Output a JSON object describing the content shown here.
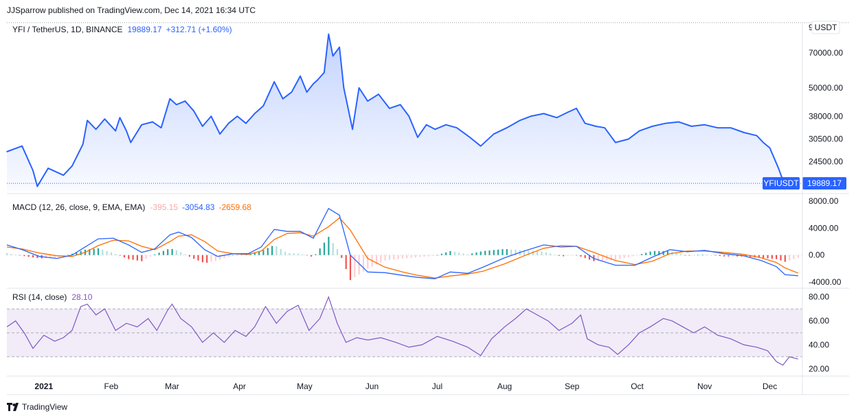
{
  "header": {
    "publish_line": "JJSparrow published on TradingView.com, Dec 14, 2021 16:34 UTC"
  },
  "footer": {
    "brand": "TradingView"
  },
  "colors": {
    "price_line": "#2962ff",
    "macd_line": "#2962ff",
    "signal_line": "#ff6d00",
    "hist_pos_strong": "#26a69a",
    "hist_pos_weak": "#b2dfdb",
    "hist_neg_strong": "#ef5350",
    "hist_neg_weak": "#ffcdd2",
    "rsi_line": "#7e57c2",
    "rsi_band": "#ede7f6",
    "price_tag_bg": "#2962ff"
  },
  "chart_data": [
    {
      "type": "area",
      "legend": {
        "symbol": "YFI / TetherUS, 1D, BINANCE",
        "last": "19889.17",
        "change": "+312.71 (+1.60%)"
      },
      "currency": "USDT",
      "scale": "log",
      "ylim": [
        18500,
        92000
      ],
      "y_ticks": [
        "24500.00",
        "30500.00",
        "38000.00",
        "50000.00",
        "70000.00",
        "9"
      ],
      "price_tag": {
        "symbol": "YFIUSDT",
        "value": "19889.17"
      },
      "x_ticks": [
        "2021",
        "Feb",
        "Mar",
        "Apr",
        "May",
        "Jun",
        "Jul",
        "Aug",
        "Sep",
        "Oct",
        "Nov",
        "Dec"
      ],
      "points": [
        [
          "2020-12-15",
          27000
        ],
        [
          "2020-12-22",
          28500
        ],
        [
          "2020-12-27",
          22500
        ],
        [
          "2020-12-29",
          19300
        ],
        [
          "2021-01-03",
          23000
        ],
        [
          "2021-01-10",
          21500
        ],
        [
          "2021-01-14",
          23500
        ],
        [
          "2021-01-19",
          29000
        ],
        [
          "2021-01-21",
          36500
        ],
        [
          "2021-01-25",
          33500
        ],
        [
          "2021-01-29",
          37000
        ],
        [
          "2021-02-03",
          33000
        ],
        [
          "2021-02-05",
          37500
        ],
        [
          "2021-02-08",
          33000
        ],
        [
          "2021-02-10",
          29500
        ],
        [
          "2021-02-15",
          35000
        ],
        [
          "2021-02-20",
          36000
        ],
        [
          "2021-02-24",
          34000
        ],
        [
          "2021-02-28",
          45000
        ],
        [
          "2021-03-03",
          42500
        ],
        [
          "2021-03-07",
          44000
        ],
        [
          "2021-03-11",
          40000
        ],
        [
          "2021-03-15",
          34500
        ],
        [
          "2021-03-19",
          38000
        ],
        [
          "2021-03-23",
          32000
        ],
        [
          "2021-03-27",
          35500
        ],
        [
          "2021-03-31",
          38000
        ],
        [
          "2021-04-04",
          35500
        ],
        [
          "2021-04-08",
          39000
        ],
        [
          "2021-04-12",
          42000
        ],
        [
          "2021-04-17",
          53000
        ],
        [
          "2021-04-21",
          45000
        ],
        [
          "2021-04-25",
          48000
        ],
        [
          "2021-04-29",
          56000
        ],
        [
          "2021-05-02",
          48000
        ],
        [
          "2021-05-05",
          52000
        ],
        [
          "2021-05-07",
          54000
        ],
        [
          "2021-05-10",
          58000
        ],
        [
          "2021-05-12",
          84000
        ],
        [
          "2021-05-14",
          68000
        ],
        [
          "2021-05-17",
          74000
        ],
        [
          "2021-05-19",
          50000
        ],
        [
          "2021-05-23",
          33500
        ],
        [
          "2021-05-26",
          50000
        ],
        [
          "2021-05-30",
          44000
        ],
        [
          "2021-06-04",
          47000
        ],
        [
          "2021-06-09",
          41000
        ],
        [
          "2021-06-14",
          42500
        ],
        [
          "2021-06-18",
          38000
        ],
        [
          "2021-06-22",
          31000
        ],
        [
          "2021-06-26",
          35000
        ],
        [
          "2021-06-30",
          33500
        ],
        [
          "2021-07-05",
          35000
        ],
        [
          "2021-07-10",
          34000
        ],
        [
          "2021-07-16",
          31000
        ],
        [
          "2021-07-21",
          28500
        ],
        [
          "2021-07-27",
          32000
        ],
        [
          "2021-08-02",
          34000
        ],
        [
          "2021-08-08",
          36500
        ],
        [
          "2021-08-13",
          38000
        ],
        [
          "2021-08-19",
          39000
        ],
        [
          "2021-08-25",
          37500
        ],
        [
          "2021-08-30",
          39500
        ],
        [
          "2021-09-03",
          41000
        ],
        [
          "2021-09-07",
          35500
        ],
        [
          "2021-09-12",
          34500
        ],
        [
          "2021-09-16",
          34000
        ],
        [
          "2021-09-21",
          29500
        ],
        [
          "2021-09-27",
          30500
        ],
        [
          "2021-10-02",
          33000
        ],
        [
          "2021-10-08",
          34500
        ],
        [
          "2021-10-14",
          35500
        ],
        [
          "2021-10-20",
          36000
        ],
        [
          "2021-10-26",
          34500
        ],
        [
          "2021-11-01",
          35000
        ],
        [
          "2021-11-07",
          34000
        ],
        [
          "2021-11-13",
          34000
        ],
        [
          "2021-11-19",
          32500
        ],
        [
          "2021-11-25",
          31500
        ],
        [
          "2021-11-28",
          29500
        ],
        [
          "2021-12-01",
          28000
        ],
        [
          "2021-12-05",
          23000
        ],
        [
          "2021-12-07",
          20500
        ],
        [
          "2021-12-09",
          19600
        ],
        [
          "2021-12-11",
          20900
        ],
        [
          "2021-12-14",
          19889
        ]
      ]
    },
    {
      "type": "line",
      "legend": {
        "name": "MACD (12, 26, close, 9, EMA, EMA)",
        "histogram": "-395.15",
        "macd": "-3054.83",
        "signal": "-2659.68"
      },
      "ylim": [
        -4500,
        8500
      ],
      "y_ticks": [
        "8000.00",
        "4000.00",
        "0.00",
        "-4000.00"
      ],
      "series": [
        {
          "values": [
            [
              "2020-12-15",
              1500
            ],
            [
              "2020-12-22",
              800
            ],
            [
              "2020-12-30",
              -200
            ],
            [
              "2021-01-07",
              -500
            ],
            [
              "2021-01-14",
              0
            ],
            [
              "2021-01-20",
              1200
            ],
            [
              "2021-01-26",
              2400
            ],
            [
              "2021-02-02",
              2500
            ],
            [
              "2021-02-09",
              1500
            ],
            [
              "2021-02-15",
              400
            ],
            [
              "2021-02-21",
              900
            ],
            [
              "2021-02-28",
              3000
            ],
            [
              "2021-03-04",
              3400
            ],
            [
              "2021-03-10",
              2600
            ],
            [
              "2021-03-16",
              800
            ],
            [
              "2021-03-22",
              -200
            ],
            [
              "2021-03-29",
              200
            ],
            [
              "2021-04-05",
              200
            ],
            [
              "2021-04-11",
              1200
            ],
            [
              "2021-04-17",
              3800
            ],
            [
              "2021-04-23",
              3500
            ],
            [
              "2021-04-29",
              3500
            ],
            [
              "2021-05-05",
              2500
            ],
            [
              "2021-05-12",
              6900
            ],
            [
              "2021-05-17",
              5900
            ],
            [
              "2021-05-22",
              0
            ],
            [
              "2021-05-30",
              -2500
            ],
            [
              "2021-06-07",
              -2600
            ],
            [
              "2021-06-15",
              -3000
            ],
            [
              "2021-06-22",
              -3300
            ],
            [
              "2021-06-30",
              -3500
            ],
            [
              "2021-07-07",
              -2500
            ],
            [
              "2021-07-15",
              -2700
            ],
            [
              "2021-07-22",
              -1800
            ],
            [
              "2021-08-01",
              -400
            ],
            [
              "2021-08-10",
              600
            ],
            [
              "2021-08-19",
              1500
            ],
            [
              "2021-08-27",
              1200
            ],
            [
              "2021-09-03",
              1300
            ],
            [
              "2021-09-11",
              -500
            ],
            [
              "2021-09-21",
              -1500
            ],
            [
              "2021-09-30",
              -1500
            ],
            [
              "2021-10-08",
              -300
            ],
            [
              "2021-10-16",
              800
            ],
            [
              "2021-10-24",
              500
            ],
            [
              "2021-11-01",
              700
            ],
            [
              "2021-11-10",
              200
            ],
            [
              "2021-11-19",
              -100
            ],
            [
              "2021-11-27",
              -800
            ],
            [
              "2021-12-04",
              -1700
            ],
            [
              "2021-12-08",
              -2900
            ],
            [
              "2021-12-14",
              -3055
            ]
          ]
        },
        {
          "values": [
            [
              "2020-12-15",
              1200
            ],
            [
              "2020-12-22",
              900
            ],
            [
              "2020-12-30",
              300
            ],
            [
              "2021-01-07",
              -100
            ],
            [
              "2021-01-14",
              -200
            ],
            [
              "2021-01-20",
              400
            ],
            [
              "2021-01-26",
              1400
            ],
            [
              "2021-02-02",
              2200
            ],
            [
              "2021-02-09",
              2100
            ],
            [
              "2021-02-15",
              1300
            ],
            [
              "2021-02-21",
              800
            ],
            [
              "2021-02-28",
              2000
            ],
            [
              "2021-03-04",
              2800
            ],
            [
              "2021-03-10",
              3000
            ],
            [
              "2021-03-16",
              2000
            ],
            [
              "2021-03-22",
              600
            ],
            [
              "2021-03-29",
              200
            ],
            [
              "2021-04-05",
              100
            ],
            [
              "2021-04-11",
              600
            ],
            [
              "2021-04-17",
              2300
            ],
            [
              "2021-04-23",
              3200
            ],
            [
              "2021-04-29",
              3300
            ],
            [
              "2021-05-05",
              2800
            ],
            [
              "2021-05-12",
              4200
            ],
            [
              "2021-05-17",
              5500
            ],
            [
              "2021-05-22",
              3700
            ],
            [
              "2021-05-30",
              -500
            ],
            [
              "2021-06-07",
              -1800
            ],
            [
              "2021-06-15",
              -2500
            ],
            [
              "2021-06-22",
              -3000
            ],
            [
              "2021-06-30",
              -3400
            ],
            [
              "2021-07-07",
              -3100
            ],
            [
              "2021-07-15",
              -2800
            ],
            [
              "2021-07-22",
              -2400
            ],
            [
              "2021-08-01",
              -1300
            ],
            [
              "2021-08-10",
              -100
            ],
            [
              "2021-08-19",
              1000
            ],
            [
              "2021-08-27",
              1400
            ],
            [
              "2021-09-03",
              1300
            ],
            [
              "2021-09-11",
              400
            ],
            [
              "2021-09-21",
              -800
            ],
            [
              "2021-09-30",
              -1400
            ],
            [
              "2021-10-08",
              -900
            ],
            [
              "2021-10-16",
              200
            ],
            [
              "2021-10-24",
              600
            ],
            [
              "2021-11-01",
              600
            ],
            [
              "2021-11-10",
              400
            ],
            [
              "2021-11-19",
              100
            ],
            [
              "2021-11-27",
              -400
            ],
            [
              "2021-12-04",
              -1100
            ],
            [
              "2021-12-08",
              -1900
            ],
            [
              "2021-12-14",
              -2660
            ]
          ]
        }
      ]
    },
    {
      "type": "line",
      "legend": {
        "name": "RSI (14, close)",
        "value": "28.10"
      },
      "ylim": [
        15,
        85
      ],
      "y_ticks": [
        "80.00",
        "60.00",
        "40.00",
        "20.00"
      ],
      "bands": [
        70,
        50,
        30
      ],
      "values": [
        [
          "2020-12-15",
          55
        ],
        [
          "2020-12-19",
          60
        ],
        [
          "2020-12-23",
          50
        ],
        [
          "2020-12-27",
          37
        ],
        [
          "2021-01-01",
          48
        ],
        [
          "2021-01-06",
          43
        ],
        [
          "2021-01-10",
          46
        ],
        [
          "2021-01-14",
          52
        ],
        [
          "2021-01-18",
          72
        ],
        [
          "2021-01-21",
          74
        ],
        [
          "2021-01-25",
          65
        ],
        [
          "2021-01-29",
          70
        ],
        [
          "2021-02-03",
          52
        ],
        [
          "2021-02-08",
          58
        ],
        [
          "2021-02-13",
          55
        ],
        [
          "2021-02-18",
          62
        ],
        [
          "2021-02-22",
          52
        ],
        [
          "2021-02-27",
          69
        ],
        [
          "2021-03-01",
          74
        ],
        [
          "2021-03-05",
          62
        ],
        [
          "2021-03-10",
          55
        ],
        [
          "2021-03-15",
          42
        ],
        [
          "2021-03-20",
          50
        ],
        [
          "2021-03-25",
          42
        ],
        [
          "2021-03-30",
          52
        ],
        [
          "2021-04-04",
          47
        ],
        [
          "2021-04-08",
          55
        ],
        [
          "2021-04-13",
          72
        ],
        [
          "2021-04-18",
          58
        ],
        [
          "2021-04-23",
          68
        ],
        [
          "2021-04-28",
          73
        ],
        [
          "2021-05-03",
          52
        ],
        [
          "2021-05-08",
          62
        ],
        [
          "2021-05-12",
          80
        ],
        [
          "2021-05-16",
          58
        ],
        [
          "2021-05-20",
          42
        ],
        [
          "2021-05-25",
          46
        ],
        [
          "2021-05-30",
          44
        ],
        [
          "2021-06-05",
          46
        ],
        [
          "2021-06-12",
          42
        ],
        [
          "2021-06-18",
          38
        ],
        [
          "2021-06-24",
          40
        ],
        [
          "2021-07-01",
          47
        ],
        [
          "2021-07-08",
          43
        ],
        [
          "2021-07-15",
          38
        ],
        [
          "2021-07-21",
          31
        ],
        [
          "2021-07-26",
          45
        ],
        [
          "2021-08-01",
          55
        ],
        [
          "2021-08-06",
          62
        ],
        [
          "2021-08-11",
          70
        ],
        [
          "2021-08-16",
          65
        ],
        [
          "2021-08-21",
          60
        ],
        [
          "2021-08-26",
          52
        ],
        [
          "2021-09-01",
          58
        ],
        [
          "2021-09-05",
          65
        ],
        [
          "2021-09-08",
          45
        ],
        [
          "2021-09-13",
          40
        ],
        [
          "2021-09-18",
          38
        ],
        [
          "2021-09-22",
          32
        ],
        [
          "2021-09-27",
          40
        ],
        [
          "2021-10-02",
          50
        ],
        [
          "2021-10-07",
          55
        ],
        [
          "2021-10-13",
          62
        ],
        [
          "2021-10-17",
          60
        ],
        [
          "2021-10-22",
          55
        ],
        [
          "2021-10-27",
          50
        ],
        [
          "2021-11-01",
          55
        ],
        [
          "2021-11-07",
          48
        ],
        [
          "2021-11-13",
          45
        ],
        [
          "2021-11-19",
          40
        ],
        [
          "2021-11-25",
          38
        ],
        [
          "2021-11-30",
          35
        ],
        [
          "2021-12-04",
          26
        ],
        [
          "2021-12-07",
          23
        ],
        [
          "2021-12-10",
          30
        ],
        [
          "2021-12-14",
          28.1
        ]
      ]
    }
  ]
}
